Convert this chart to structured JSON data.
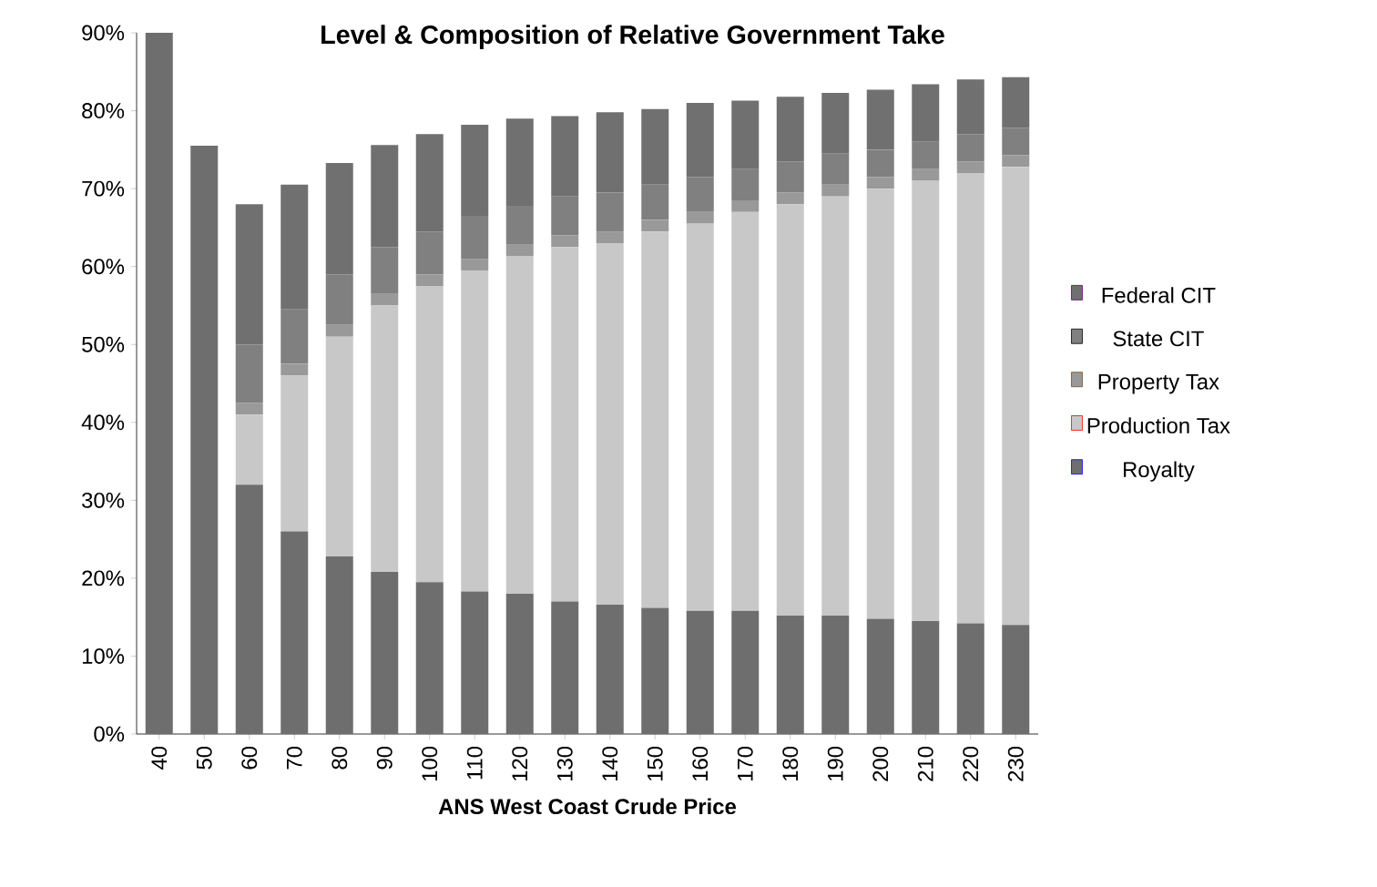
{
  "chart_data": {
    "type": "bar",
    "stacked": true,
    "title": "Level & Composition of Relative Government Take",
    "xlabel": "ANS West Coast Crude Price",
    "categories": [
      "40",
      "50",
      "60",
      "70",
      "80",
      "90",
      "100",
      "110",
      "120",
      "130",
      "140",
      "150",
      "160",
      "170",
      "180",
      "190",
      "200",
      "210",
      "220",
      "230"
    ],
    "series": [
      {
        "name": "Royalty",
        "color": "#6e6e6e",
        "values": [
          90,
          75.5,
          32,
          26,
          22.8,
          20.8,
          19.5,
          18.3,
          18,
          17,
          16.6,
          16.2,
          15.8,
          15.8,
          15.2,
          15.2,
          14.8,
          14.5,
          14.2,
          14
        ]
      },
      {
        "name": "Production Tax",
        "color": "#c8c8c8",
        "values": [
          0,
          0,
          9,
          20,
          28.2,
          34.2,
          38,
          41.2,
          43.3,
          45.5,
          46.4,
          48.3,
          49.7,
          51.2,
          52.8,
          53.8,
          55.2,
          56.5,
          57.8,
          58.8
        ]
      },
      {
        "name": "Property Tax",
        "color": "#999999",
        "values": [
          0,
          0,
          1.5,
          1.5,
          1.5,
          1.5,
          1.5,
          1.5,
          1.5,
          1.5,
          1.5,
          1.5,
          1.5,
          1.5,
          1.5,
          1.5,
          1.5,
          1.5,
          1.5,
          1.5
        ]
      },
      {
        "name": "State CIT",
        "color": "#808080",
        "values": [
          0,
          0,
          7.5,
          7,
          6.5,
          6,
          5.5,
          5.5,
          5,
          5,
          5,
          4.5,
          4.5,
          4,
          4,
          4,
          3.5,
          3.5,
          3.5,
          3.5
        ]
      },
      {
        "name": "Federal CIT",
        "color": "#707070",
        "values": [
          0,
          0,
          18,
          16,
          14.3,
          13.1,
          12.5,
          11.7,
          11.2,
          10.3,
          10.3,
          9.7,
          9.5,
          8.8,
          8.3,
          7.8,
          7.7,
          7.4,
          7,
          6.5
        ]
      }
    ],
    "ylim": [
      0,
      90
    ],
    "yticks": [
      {
        "value": 0,
        "label": "0%"
      },
      {
        "value": 10,
        "label": "10%"
      },
      {
        "value": 20,
        "label": "20%"
      },
      {
        "value": 30,
        "label": "30%"
      },
      {
        "value": 40,
        "label": "40%"
      },
      {
        "value": 50,
        "label": "50%"
      },
      {
        "value": 60,
        "label": "60%"
      },
      {
        "value": 70,
        "label": "70%"
      },
      {
        "value": 80,
        "label": "80%"
      },
      {
        "value": 90,
        "label": "90%"
      }
    ],
    "grid": false,
    "legend": "right"
  }
}
